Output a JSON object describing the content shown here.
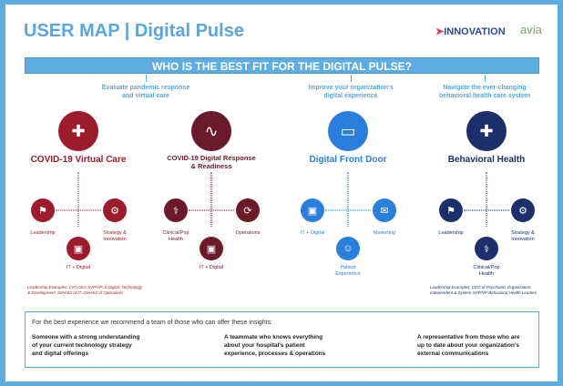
{
  "header": {
    "title": "USER MAP | Digital Pulse",
    "logo_innovation": "INNOVATION",
    "logo_avia": "avia"
  },
  "banner": "WHO IS THE BEST FIT FOR THE DIGITAL PULSE?",
  "subtitles": [
    "Evaluate pandemic response\nand virtual care",
    "Improve your organization's\ndigital experience",
    "Navigate the ever-changing\nbehavioral health care system"
  ],
  "colors": {
    "virtual_care": "#9c1c2e",
    "digital_response": "#6b1a2a",
    "front_door": "#2b7fdc",
    "behavioral": "#1c2f6b",
    "accent": "#5dade2"
  },
  "columns": [
    {
      "title": "COVID-19 Virtual Care",
      "icon": "virtual-care-icon",
      "roles": {
        "left": "Leadership",
        "right": "Strategy &\nInnovation",
        "bottom": "IT + Digital"
      },
      "note": "Leadership Examples: CIO,CEO SVP/VP of Digital, Technology\n& Development, Director of IT, Director of Operations"
    },
    {
      "title": "COVID-19 Digital Response\n& Readiness",
      "icon": "heartbeat-signal-icon",
      "roles": {
        "left": "Clinical/Pop\nHealth",
        "right": "Operations",
        "bottom": "IT + Digital"
      }
    },
    {
      "title": "Digital Front Door",
      "icon": "laptop-phone-icon",
      "roles": {
        "left": "IT + Digital",
        "right": "Marketing",
        "bottom": "Patient\nExperience"
      }
    },
    {
      "title": "Behavioral Health",
      "icon": "medical-cross-heart-icon",
      "roles": {
        "left": "Leadership",
        "right": "Strategy &\nInnovation",
        "bottom": "Clinical/Pop\nHealth"
      },
      "note": "Leadership Examples: CEO of Psychiatric Organization,\nIndependent & System SVP/VP Behavioral Health Leaders"
    }
  ],
  "footer": {
    "intro": "For the best experience we recommend a team of those who can offer these insights:",
    "insights": [
      "Someone with a strong understanding\nof your current technology strategy\nand digital offerings",
      "A teammate who knows everything\nabout your hospital's patient\nexperience, processes & operations",
      "A representative from those who are\nup to date about your organization's\nexternal communications"
    ]
  }
}
